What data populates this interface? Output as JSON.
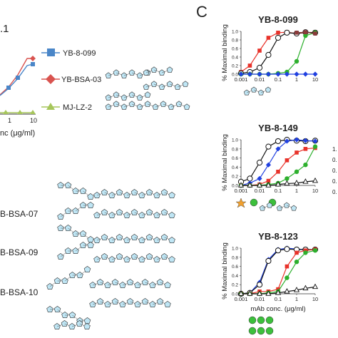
{
  "panel_letter": "C",
  "left_panel": {
    "fragment_label": ".1",
    "xlabel_fragment": "nc (μg/ml)",
    "x_ticks": [
      "1",
      "10"
    ],
    "legend": [
      {
        "label": "YB-8-099",
        "color": "#4a86c8",
        "marker": "square"
      },
      {
        "label": "YB-BSA-03",
        "color": "#d9534f",
        "marker": "diamond"
      },
      {
        "label": "MJ-LZ-2",
        "color": "#a6c65a",
        "marker": "triangle"
      }
    ],
    "structures": [
      {
        "label": "B-BSA-07"
      },
      {
        "label": "B-BSA-09"
      },
      {
        "label": "B-BSA-10"
      }
    ]
  },
  "chart_data": [
    {
      "type": "line",
      "title": "YB-8-099",
      "ylabel": "% Maximal binding",
      "xlabel": "",
      "x_scale": "log",
      "xlim": [
        0.001,
        10
      ],
      "ylim": [
        0,
        1.0
      ],
      "x_tick_labels": [
        "0.001",
        "0.01",
        "0.1",
        "1",
        "10"
      ],
      "y_tick_labels": [
        "0.0",
        "0.2",
        "0.4",
        "0.6",
        "0.8",
        "1.0"
      ],
      "x": [
        0.001,
        0.003,
        0.01,
        0.03,
        0.1,
        0.3,
        1,
        3,
        10
      ],
      "series": [
        {
          "color": "#e8322a",
          "marker": "square",
          "values": [
            0.05,
            0.2,
            0.55,
            0.85,
            0.97,
            0.98,
            0.95,
            0.97,
            0.98
          ]
        },
        {
          "color": "#111111",
          "marker": "circle-open",
          "values": [
            0.02,
            0.05,
            0.15,
            0.45,
            0.85,
            0.97,
            0.95,
            0.98,
            0.97
          ]
        },
        {
          "color": "#2db02d",
          "marker": "circle",
          "values": [
            0.0,
            0.0,
            0.0,
            0.0,
            0.02,
            0.05,
            0.3,
            0.9,
            0.97
          ]
        },
        {
          "color": "#2040e0",
          "marker": "diamond",
          "values": [
            0.0,
            0.0,
            0.0,
            0.0,
            0.0,
            0.0,
            0.0,
            0.0,
            0.0
          ]
        },
        {
          "color": "#8b3a3a",
          "marker": "square",
          "values": [
            null,
            null,
            null,
            null,
            null,
            null,
            0.97,
            0.98,
            0.95
          ]
        }
      ]
    },
    {
      "type": "line",
      "title": "YB-8-149",
      "ylabel": "% Maximal binding",
      "xlabel": "",
      "x_scale": "log",
      "xlim": [
        0.001,
        10
      ],
      "ylim": [
        0,
        1.0
      ],
      "x_tick_labels": [
        "0.001",
        "0.01",
        "0.1",
        "1",
        "10"
      ],
      "y_tick_labels": [
        "0.0",
        "0.2",
        "0.4",
        "0.6",
        "0.8",
        "1.0"
      ],
      "x": [
        0.001,
        0.003,
        0.01,
        0.03,
        0.1,
        0.3,
        1,
        3,
        10
      ],
      "series": [
        {
          "color": "#111111",
          "marker": "circle-open",
          "values": [
            0.08,
            0.15,
            0.5,
            0.85,
            0.97,
            1.0,
            0.98,
            0.97,
            0.98
          ]
        },
        {
          "color": "#2040e0",
          "marker": "diamond",
          "values": [
            0.0,
            0.05,
            0.15,
            0.45,
            0.8,
            0.97,
            1.0,
            0.98,
            0.97
          ]
        },
        {
          "color": "#e8322a",
          "marker": "square",
          "values": [
            0.0,
            0.0,
            0.02,
            0.1,
            0.3,
            0.55,
            0.72,
            0.8,
            0.82
          ]
        },
        {
          "color": "#2db02d",
          "marker": "circle",
          "values": [
            0.0,
            0.0,
            0.0,
            0.02,
            0.05,
            0.15,
            0.3,
            0.45,
            0.85
          ]
        },
        {
          "color": "#111111",
          "marker": "triangle-open",
          "values": [
            0.0,
            0.0,
            0.0,
            0.0,
            0.02,
            0.04,
            0.05,
            0.08,
            0.1
          ]
        }
      ]
    },
    {
      "type": "line",
      "title": "YB-8-123",
      "ylabel": "% Maximal binding",
      "xlabel": "mAb conc. (μg/ml)",
      "x_scale": "log",
      "xlim": [
        0.001,
        10
      ],
      "ylim": [
        0,
        1.0
      ],
      "x_tick_labels": [
        "0.001",
        "0.01",
        "0.1",
        "1",
        "10"
      ],
      "y_tick_labels": [
        "0.0",
        "0.2",
        "0.4",
        "0.6",
        "0.8",
        "1.0"
      ],
      "x": [
        0.001,
        0.003,
        0.01,
        0.03,
        0.1,
        0.3,
        1,
        3,
        10
      ],
      "series": [
        {
          "color": "#2040e0",
          "marker": "diamond",
          "values": [
            0.0,
            0.02,
            0.25,
            0.75,
            0.97,
            1.0,
            0.98,
            0.97,
            0.96
          ]
        },
        {
          "color": "#111111",
          "marker": "circle-open",
          "values": [
            0.0,
            0.02,
            0.2,
            0.72,
            0.95,
            0.98,
            0.97,
            0.97,
            0.97
          ]
        },
        {
          "color": "#e8322a",
          "marker": "square",
          "values": [
            0.0,
            0.0,
            0.05,
            0.05,
            0.1,
            0.6,
            0.9,
            0.95,
            0.97
          ]
        },
        {
          "color": "#2db02d",
          "marker": "circle",
          "values": [
            0.0,
            0.0,
            0.0,
            0.02,
            0.05,
            0.35,
            0.7,
            0.9,
            0.95
          ]
        },
        {
          "color": "#111111",
          "marker": "triangle-open",
          "values": [
            0.0,
            0.0,
            0.0,
            0.0,
            0.02,
            0.05,
            0.08,
            0.12,
            0.15
          ]
        }
      ]
    }
  ]
}
